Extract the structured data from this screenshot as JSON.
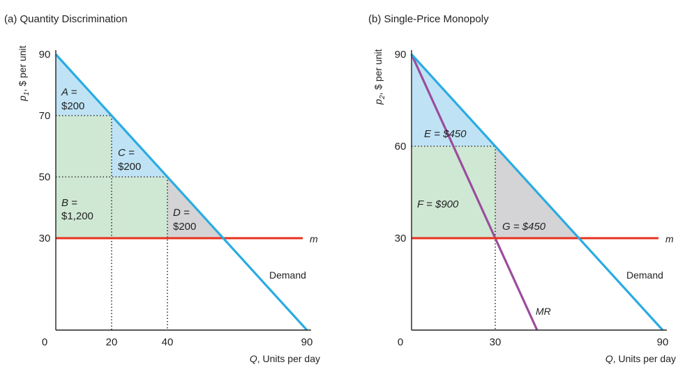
{
  "chart_data": [
    {
      "type": "line",
      "title": "(a) Quantity Discrimination",
      "ylabel": "p1, $ per unit",
      "ylabel_main": "p",
      "ylabel_sub": "1",
      "ylabel_rest": ", $ per unit",
      "xlabel": "Q, Units per day",
      "xlabel_var": "Q",
      "xlabel_rest": ", Units per day",
      "origin_label": "0",
      "xlim": [
        0,
        90
      ],
      "ylim": [
        0,
        90
      ],
      "x_ticks": [
        20,
        40,
        90
      ],
      "x_tick_labels": [
        "20",
        "40",
        "90"
      ],
      "y_ticks": [
        30,
        50,
        70,
        90
      ],
      "y_tick_labels": [
        "30",
        "50",
        "70",
        "90"
      ],
      "series": [
        {
          "name": "Demand",
          "x": [
            0,
            90
          ],
          "y": [
            90,
            0
          ],
          "color": "#29abe2"
        },
        {
          "name": "m",
          "x": [
            0,
            90
          ],
          "y": [
            30,
            30
          ],
          "color": "#e8311c"
        }
      ],
      "step_prices": [
        {
          "q_from": 0,
          "q_to": 20,
          "price": 70
        },
        {
          "q_from": 20,
          "q_to": 40,
          "price": 50
        },
        {
          "q_from": 40,
          "q_to": 60,
          "price": 30
        }
      ],
      "regions": [
        {
          "id": "A",
          "line1": "A =",
          "line2": "$200",
          "value": 200,
          "type": "consumer_surplus"
        },
        {
          "id": "C",
          "line1": "C =",
          "line2": "$200",
          "value": 200,
          "type": "consumer_surplus"
        },
        {
          "id": "B",
          "line1": "B =",
          "line2": "$1,200",
          "value": 1200,
          "type": "producer_surplus"
        },
        {
          "id": "D",
          "line1": "D =",
          "line2": "$200",
          "value": 200,
          "type": "deadweight_loss"
        }
      ],
      "curve_labels": {
        "demand": "Demand",
        "mc": "m"
      }
    },
    {
      "type": "line",
      "title": "(b) Single-Price Monopoly",
      "ylabel": "p2, $ per unit",
      "ylabel_main": "p",
      "ylabel_sub": "2",
      "ylabel_rest": ", $ per unit",
      "xlabel": "Q, Units per day",
      "xlabel_var": "Q",
      "xlabel_rest": ", Units per day",
      "origin_label": "0",
      "xlim": [
        0,
        90
      ],
      "ylim": [
        0,
        90
      ],
      "x_ticks": [
        30,
        90
      ],
      "x_tick_labels": [
        "30",
        "90"
      ],
      "y_ticks": [
        30,
        60,
        90
      ],
      "y_tick_labels": [
        "30",
        "60",
        "90"
      ],
      "series": [
        {
          "name": "Demand",
          "x": [
            0,
            90
          ],
          "y": [
            90,
            0
          ],
          "color": "#29abe2"
        },
        {
          "name": "MR",
          "x": [
            0,
            45
          ],
          "y": [
            90,
            0
          ],
          "color": "#9b4d9c"
        },
        {
          "name": "m",
          "x": [
            0,
            90
          ],
          "y": [
            30,
            30
          ],
          "color": "#e8311c"
        }
      ],
      "monopoly": {
        "q": 30,
        "price": 60
      },
      "regions": [
        {
          "id": "E",
          "line1": "E = $450",
          "value": 450,
          "type": "consumer_surplus"
        },
        {
          "id": "F",
          "line1": "F = $900",
          "value": 900,
          "type": "producer_surplus"
        },
        {
          "id": "G",
          "line1": "G = $450",
          "value": 450,
          "type": "deadweight_loss"
        }
      ],
      "curve_labels": {
        "demand": "Demand",
        "mc": "m",
        "mr": "MR"
      }
    }
  ],
  "colors": {
    "demand": "#29abe2",
    "mc": "#e8311c",
    "mr": "#9b4d9c",
    "consumer_surplus": "#bfe3f5",
    "producer_surplus": "#cfe8d4",
    "deadweight_loss": "#d4d4d6",
    "axis": "#222222",
    "guide": "#333333"
  }
}
